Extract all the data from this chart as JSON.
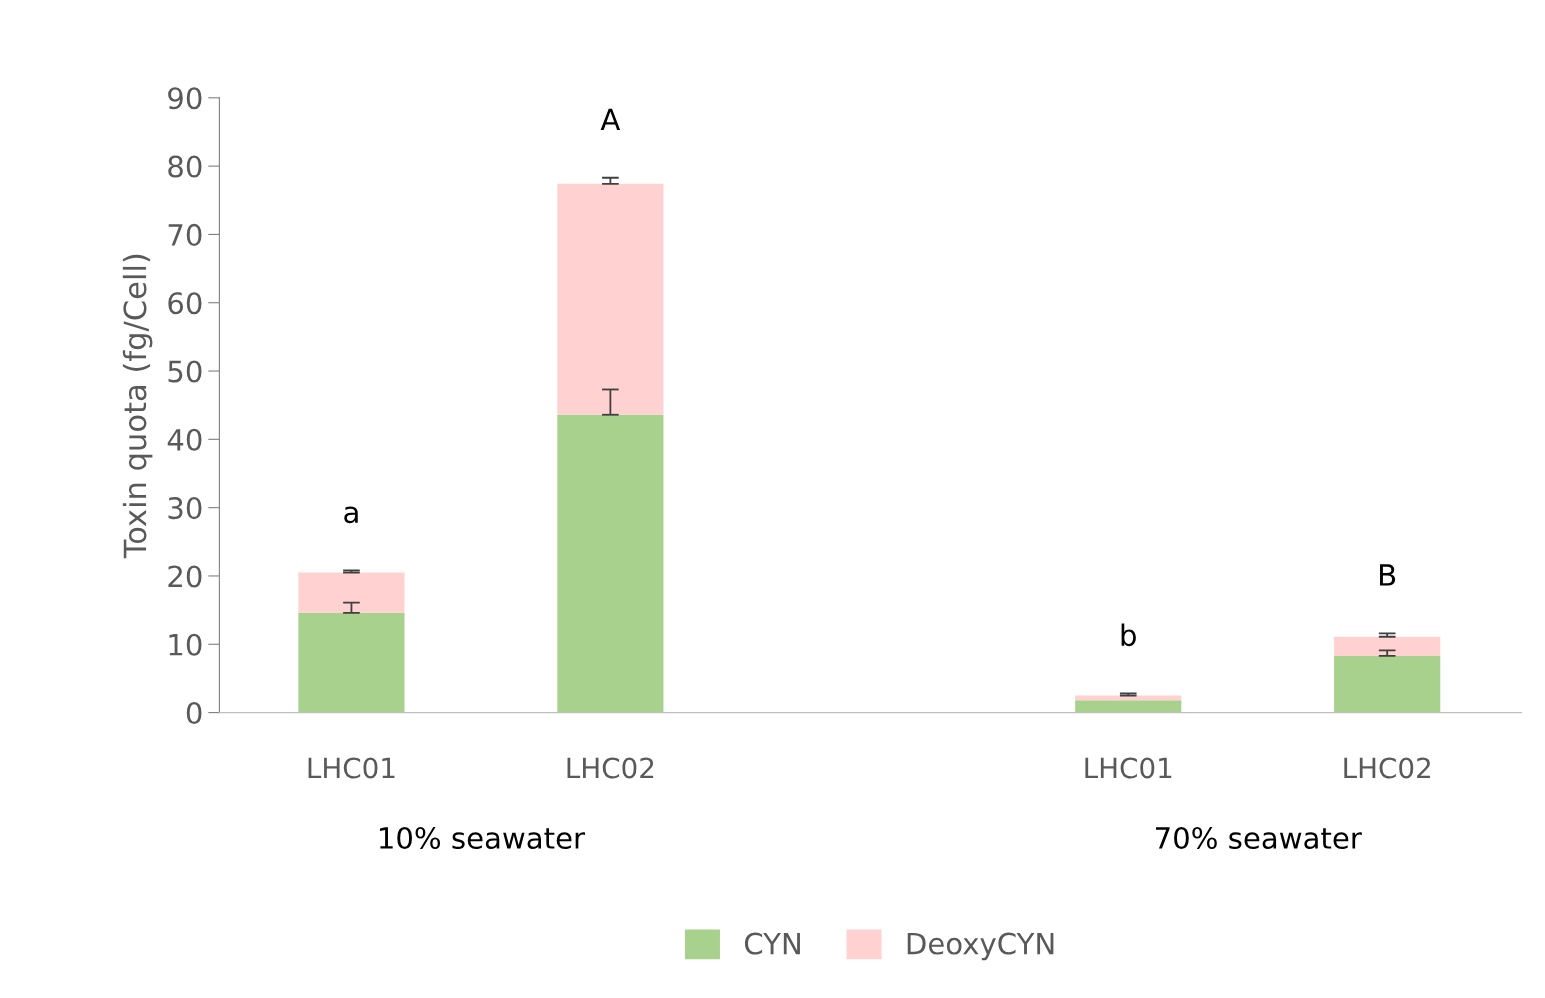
{
  "chart_data": {
    "type": "bar",
    "stacked": true,
    "ylabel": "Toxin quota (fg/Cell)",
    "categories": [
      "LHC01",
      "LHC02",
      null,
      "LHC01",
      "LHC02"
    ],
    "series": [
      {
        "name": "CYN",
        "color": "#a9d18e",
        "values": [
          14.6,
          43.6,
          null,
          1.8,
          8.3
        ],
        "errors": [
          [
            14.6,
            16.1
          ],
          [
            43.6,
            47.3
          ],
          null,
          null,
          [
            8.3,
            9.1
          ]
        ]
      },
      {
        "name": "DeoxyCYN",
        "color": "#ffd1d1",
        "values": [
          5.9,
          33.8,
          null,
          0.7,
          2.8
        ],
        "errors": [
          [
            20.5,
            20.8
          ],
          [
            77.4,
            78.3
          ],
          null,
          [
            2.5,
            2.8
          ],
          [
            11.1,
            11.6
          ]
        ]
      }
    ],
    "ylim": [
      0,
      90
    ],
    "yticks": [
      0,
      10,
      20,
      30,
      40,
      50,
      60,
      70,
      80,
      90
    ],
    "annotations": [
      "a",
      "A",
      "b",
      "B",
      "10% seawater",
      "70% seawater"
    ],
    "legend": "bottom",
    "grid": false
  }
}
